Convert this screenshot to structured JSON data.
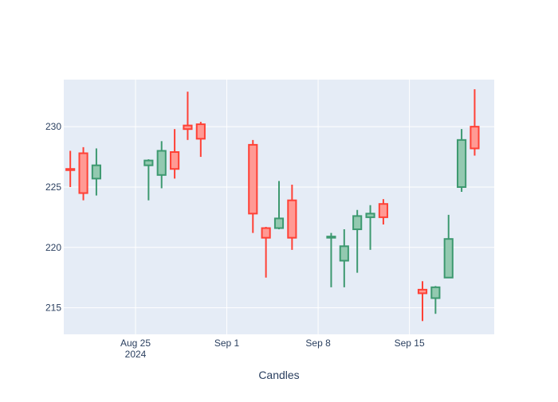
{
  "chart_data": {
    "type": "candlestick",
    "xlabel": "Candles",
    "ylabel": "",
    "title": "",
    "ylim": [
      212.8,
      233.9
    ],
    "xlim_dates": [
      "2024-08-19T12:00",
      "2024-09-21T12:00"
    ],
    "y_ticks": [
      215,
      220,
      225,
      230
    ],
    "x_ticks": [
      {
        "date": "2024-08-25",
        "label": "Aug 25",
        "sublabel": "2024"
      },
      {
        "date": "2024-09-01",
        "label": "Sep 1",
        "sublabel": ""
      },
      {
        "date": "2024-09-08",
        "label": "Sep 8",
        "sublabel": ""
      },
      {
        "date": "2024-09-15",
        "label": "Sep 15",
        "sublabel": ""
      }
    ],
    "colors": {
      "increasing_line": "#3d9970",
      "increasing_fill": "#93c9b0",
      "decreasing_line": "#ff4136",
      "decreasing_fill": "#ff9a94",
      "plot_bg": "#e5ecf6",
      "grid": "#ffffff",
      "axis_text": "#2a3f5f"
    },
    "candles": [
      {
        "date": "2024-08-20",
        "open": 226.5,
        "high": 228.0,
        "low": 225.0,
        "close": 226.4
      },
      {
        "date": "2024-08-21",
        "open": 227.8,
        "high": 228.3,
        "low": 223.9,
        "close": 224.5
      },
      {
        "date": "2024-08-22",
        "open": 225.7,
        "high": 228.2,
        "low": 224.3,
        "close": 226.8
      },
      {
        "date": "2024-08-26",
        "open": 226.8,
        "high": 227.3,
        "low": 223.9,
        "close": 227.2
      },
      {
        "date": "2024-08-27",
        "open": 226.0,
        "high": 228.8,
        "low": 224.9,
        "close": 228.0
      },
      {
        "date": "2024-08-28",
        "open": 227.9,
        "high": 229.8,
        "low": 225.7,
        "close": 226.5
      },
      {
        "date": "2024-08-29",
        "open": 230.1,
        "high": 232.9,
        "low": 228.9,
        "close": 229.8
      },
      {
        "date": "2024-08-30",
        "open": 230.2,
        "high": 230.4,
        "low": 227.5,
        "close": 229.0
      },
      {
        "date": "2024-09-03",
        "open": 228.5,
        "high": 228.9,
        "low": 221.2,
        "close": 222.8
      },
      {
        "date": "2024-09-04",
        "open": 221.6,
        "high": 221.7,
        "low": 217.5,
        "close": 220.8
      },
      {
        "date": "2024-09-05",
        "open": 221.6,
        "high": 225.5,
        "low": 221.5,
        "close": 222.4
      },
      {
        "date": "2024-09-06",
        "open": 223.9,
        "high": 225.2,
        "low": 219.8,
        "close": 220.8
      },
      {
        "date": "2024-09-09",
        "open": 220.8,
        "high": 221.2,
        "low": 216.7,
        "close": 220.9
      },
      {
        "date": "2024-09-10",
        "open": 218.9,
        "high": 221.5,
        "low": 216.7,
        "close": 220.1
      },
      {
        "date": "2024-09-11",
        "open": 221.5,
        "high": 223.1,
        "low": 217.9,
        "close": 222.6
      },
      {
        "date": "2024-09-12",
        "open": 222.5,
        "high": 223.5,
        "low": 219.8,
        "close": 222.8
      },
      {
        "date": "2024-09-13",
        "open": 223.6,
        "high": 224.0,
        "low": 221.9,
        "close": 222.5
      },
      {
        "date": "2024-09-16",
        "open": 216.5,
        "high": 217.2,
        "low": 213.9,
        "close": 216.2
      },
      {
        "date": "2024-09-17",
        "open": 215.8,
        "high": 216.8,
        "low": 214.5,
        "close": 216.7
      },
      {
        "date": "2024-09-18",
        "open": 217.5,
        "high": 222.7,
        "low": 217.5,
        "close": 220.7
      },
      {
        "date": "2024-09-19",
        "open": 225.0,
        "high": 229.8,
        "low": 224.6,
        "close": 228.9
      },
      {
        "date": "2024-09-20",
        "open": 230.0,
        "high": 233.1,
        "low": 227.6,
        "close": 228.2
      }
    ]
  }
}
